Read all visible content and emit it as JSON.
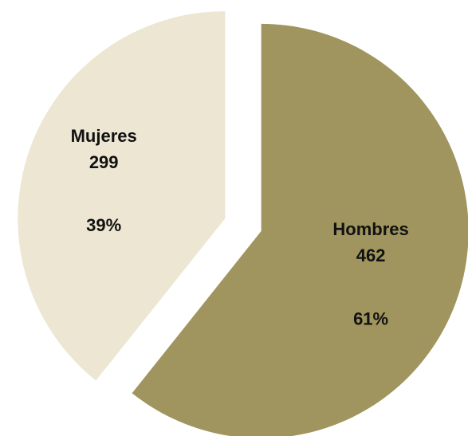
{
  "chart_data": {
    "type": "pie",
    "exploded": true,
    "start_angle_deg": 0,
    "direction": "clockwise",
    "slices": [
      {
        "name": "Hombres",
        "value": 462,
        "percent": "61%",
        "color": "#a0955e"
      },
      {
        "name": "Mujeres",
        "value": 299,
        "percent": "39%",
        "color": "#ece6d2"
      }
    ]
  }
}
